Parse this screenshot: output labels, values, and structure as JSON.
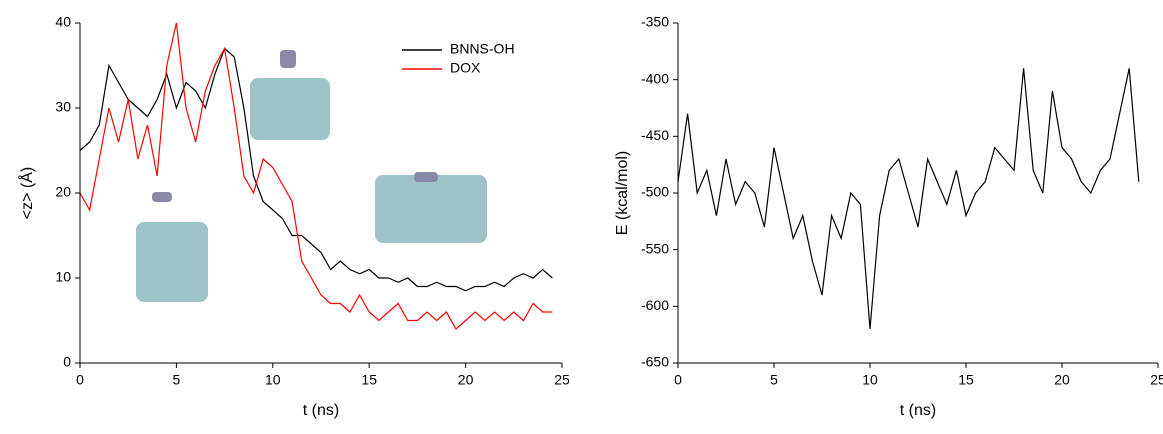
{
  "chart_data": [
    {
      "type": "line",
      "xlabel": "t (ns)",
      "ylabel": "<z> (Å)",
      "xlim": [
        0,
        25
      ],
      "xticks": [
        0,
        5,
        10,
        15,
        20,
        25
      ],
      "ylim": [
        0,
        40
      ],
      "yticks": [
        0,
        10,
        20,
        30,
        40
      ],
      "legend": "top-right",
      "x": [
        0,
        0.5,
        1,
        1.5,
        2,
        2.5,
        3,
        3.5,
        4,
        4.5,
        5,
        5.5,
        6,
        6.5,
        7,
        7.5,
        8,
        8.5,
        9,
        9.5,
        10,
        10.5,
        11,
        11.5,
        12,
        12.5,
        13,
        13.5,
        14,
        14.5,
        15,
        15.5,
        16,
        16.5,
        17,
        17.5,
        18,
        18.5,
        19,
        19.5,
        20,
        20.5,
        21,
        21.5,
        22,
        22.5,
        23,
        23.5,
        24,
        24.5
      ],
      "series": [
        {
          "name": "BNNS-OH",
          "color": "#000000",
          "values": [
            25,
            26,
            28,
            35,
            33,
            31,
            30,
            29,
            31,
            34,
            30,
            33,
            32,
            30,
            34,
            37,
            36,
            30,
            22,
            19,
            18,
            17,
            15,
            15,
            14,
            13,
            11,
            12,
            11,
            10.5,
            11,
            10,
            10,
            9.5,
            10,
            9,
            9,
            9.5,
            9,
            9,
            8.5,
            9,
            9,
            9.5,
            9,
            10,
            10.5,
            10,
            11,
            10
          ]
        },
        {
          "name": "DOX",
          "color": "#ff0000",
          "values": [
            20,
            18,
            24,
            30,
            26,
            31,
            24,
            28,
            22,
            35,
            40,
            30,
            26,
            32,
            35,
            37,
            30,
            22,
            20,
            24,
            23,
            21,
            19,
            12,
            10,
            8,
            7,
            7,
            6,
            8,
            6,
            5,
            6,
            7,
            5,
            5,
            6,
            5,
            6,
            4,
            5,
            6,
            5,
            6,
            5,
            6,
            5,
            7,
            6,
            6
          ]
        }
      ]
    },
    {
      "type": "line",
      "xlabel": "t (ns)",
      "ylabel": "E (kcal/mol)",
      "xlim": [
        0,
        25
      ],
      "xticks": [
        0,
        5,
        10,
        15,
        20,
        25
      ],
      "ylim": [
        -650,
        -350
      ],
      "yticks": [
        -650,
        -600,
        -550,
        -500,
        -450,
        -400,
        -350
      ],
      "x": [
        0,
        0.5,
        1,
        1.5,
        2,
        2.5,
        3,
        3.5,
        4,
        4.5,
        5,
        5.5,
        6,
        6.5,
        7,
        7.5,
        8,
        8.5,
        9,
        9.5,
        10,
        10.5,
        11,
        11.5,
        12,
        12.5,
        13,
        13.5,
        14,
        14.5,
        15,
        15.5,
        16,
        16.5,
        17,
        17.5,
        18,
        18.5,
        19,
        19.5,
        20,
        20.5,
        21,
        21.5,
        22,
        22.5,
        23,
        23.5,
        24
      ],
      "series": [
        {
          "color": "#000000",
          "values": [
            -490,
            -430,
            -500,
            -480,
            -520,
            -470,
            -510,
            -490,
            -500,
            -530,
            -460,
            -500,
            -540,
            -520,
            -560,
            -590,
            -520,
            -540,
            -500,
            -510,
            -620,
            -520,
            -480,
            -470,
            -500,
            -530,
            -470,
            -490,
            -510,
            -480,
            -520,
            -500,
            -490,
            -460,
            -470,
            -480,
            -390,
            -480,
            -500,
            -410,
            -460,
            -470,
            -490,
            -500,
            -480,
            -470,
            -430,
            -390,
            -490
          ]
        }
      ]
    }
  ]
}
